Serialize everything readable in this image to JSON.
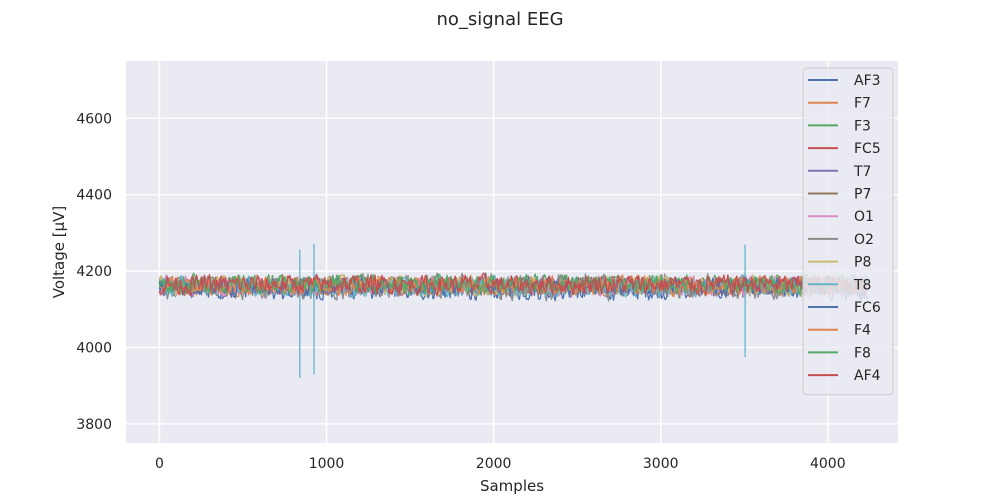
{
  "chart_data": {
    "type": "line",
    "title": "no_signal EEG",
    "xlabel": "Samples",
    "ylabel": "Voltage [µV]",
    "xlim": [
      -200,
      4420
    ],
    "ylim": [
      3750,
      4750
    ],
    "xticks": [
      0,
      1000,
      2000,
      3000,
      4000
    ],
    "yticks": [
      3800,
      4000,
      4200,
      4400,
      4600
    ],
    "grid": true,
    "legend_position": "top-right",
    "n_samples": 4240,
    "series": [
      {
        "name": "AF3",
        "color": "#4c72b0",
        "mean": 4150,
        "noise": 22
      },
      {
        "name": "F7",
        "color": "#dd8452",
        "mean": 4160,
        "noise": 20
      },
      {
        "name": "F3",
        "color": "#55a868",
        "mean": 4165,
        "noise": 22
      },
      {
        "name": "FC5",
        "color": "#c44e52",
        "mean": 4162,
        "noise": 20
      },
      {
        "name": "T7",
        "color": "#8172b3",
        "mean": 4160,
        "noise": 18
      },
      {
        "name": "P7",
        "color": "#937860",
        "mean": 4160,
        "noise": 18
      },
      {
        "name": "O1",
        "color": "#da8bc3",
        "mean": 4160,
        "noise": 22
      },
      {
        "name": "O2",
        "color": "#8c8c8c",
        "mean": 4160,
        "noise": 28
      },
      {
        "name": "P8",
        "color": "#ccb974",
        "mean": 4162,
        "noise": 22
      },
      {
        "name": "T8",
        "color": "#64b5cd",
        "mean": 4160,
        "noise": 22,
        "spikes": [
          {
            "x": 840,
            "values": [
              4255,
              3920
            ]
          },
          {
            "x": 925,
            "values": [
              4270,
              3930
            ]
          },
          {
            "x": 3505,
            "values": [
              4268,
              3975
            ]
          }
        ]
      },
      {
        "name": "FC6",
        "color": "#4c72b0",
        "mean": 4158,
        "noise": 20
      },
      {
        "name": "F4",
        "color": "#dd8452",
        "mean": 4162,
        "noise": 20
      },
      {
        "name": "F8",
        "color": "#55a868",
        "mean": 4165,
        "noise": 20
      },
      {
        "name": "AF4",
        "color": "#c44e52",
        "mean": 4165,
        "noise": 22
      }
    ]
  }
}
